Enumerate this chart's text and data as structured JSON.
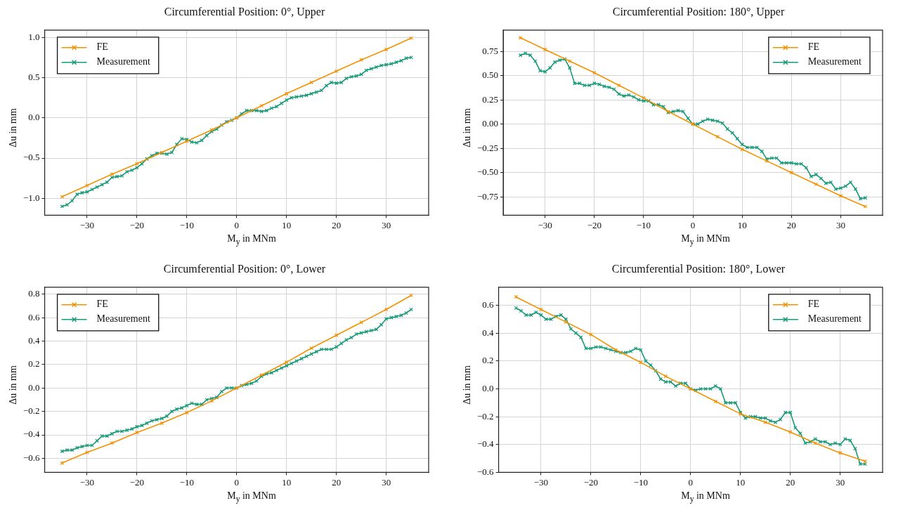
{
  "chart_data": [
    {
      "type": "line",
      "title": "Circumferential Position: 0°, Upper",
      "xlabel": "M$_{y}$ in MNm",
      "ylabel": "Δu in mm",
      "legend": "top left",
      "grid": true,
      "marker": "cross",
      "line_style": "solid",
      "xlim": [
        -38.5,
        38.5
      ],
      "ylim": [
        -1.21,
        1.09
      ],
      "xticks": [
        {
          "value": -30,
          "label": "−30"
        },
        {
          "value": -20,
          "label": "−20"
        },
        {
          "value": -10,
          "label": "−10"
        },
        0,
        10,
        20,
        30
      ],
      "yticks": [
        {
          "value": -1,
          "label": "−1.0"
        },
        {
          "value": -0.5,
          "label": "−0.5"
        },
        {
          "value": 0,
          "label": "0.0"
        },
        0.5,
        {
          "value": 1,
          "label": "1.0"
        }
      ],
      "series": [
        {
          "name": "FE",
          "color": "#f39200",
          "x": [
            -35,
            -30,
            -25,
            -20,
            -15,
            -10,
            -5,
            0,
            5,
            10,
            15,
            20,
            25,
            30,
            35
          ],
          "values": [
            -0.98,
            -0.84,
            -0.7,
            -0.57,
            -0.43,
            -0.29,
            -0.15,
            0,
            0.15,
            0.3,
            0.44,
            0.58,
            0.72,
            0.85,
            0.99
          ]
        },
        {
          "name": "Measurement",
          "color": "#169a78",
          "x": [
            -35,
            -34,
            -33,
            -32,
            -31,
            -30,
            -29,
            -28,
            -27,
            -26,
            -25,
            -24,
            -23,
            -22,
            -21,
            -20,
            -19,
            -18,
            -17,
            -16,
            -15,
            -14,
            -13,
            -12,
            -11,
            -10,
            -9,
            -8,
            -7,
            -6,
            -5,
            -4,
            -3,
            -2,
            -1,
            0,
            1,
            2,
            3,
            4,
            5,
            6,
            7,
            8,
            9,
            10,
            11,
            12,
            13,
            14,
            15,
            16,
            17,
            18,
            19,
            20,
            21,
            22,
            23,
            24,
            25,
            26,
            27,
            28,
            29,
            30,
            31,
            32,
            33,
            34,
            35
          ],
          "values": [
            -1.1,
            -1.08,
            -1.03,
            -0.95,
            -0.93,
            -0.92,
            -0.89,
            -0.86,
            -0.83,
            -0.8,
            -0.74,
            -0.73,
            -0.72,
            -0.67,
            -0.65,
            -0.62,
            -0.57,
            -0.51,
            -0.47,
            -0.44,
            -0.44,
            -0.45,
            -0.43,
            -0.33,
            -0.26,
            -0.27,
            -0.3,
            -0.31,
            -0.28,
            -0.22,
            -0.17,
            -0.14,
            -0.09,
            -0.05,
            -0.03,
            0.0,
            0.05,
            0.09,
            0.09,
            0.09,
            0.08,
            0.09,
            0.12,
            0.14,
            0.18,
            0.22,
            0.25,
            0.26,
            0.27,
            0.28,
            0.3,
            0.32,
            0.34,
            0.4,
            0.44,
            0.43,
            0.44,
            0.49,
            0.51,
            0.52,
            0.54,
            0.59,
            0.61,
            0.63,
            0.65,
            0.66,
            0.67,
            0.69,
            0.71,
            0.74,
            0.75
          ]
        }
      ]
    },
    {
      "type": "line",
      "title": "Circumferential Position: 180°, Upper",
      "xlabel": "M$_{y}$ in MNm",
      "ylabel": "Δu in mm",
      "legend": "top right",
      "grid": true,
      "marker": "cross",
      "line_style": "solid",
      "xlim": [
        -38.5,
        38.5
      ],
      "ylim": [
        -0.94,
        0.97
      ],
      "xticks": [
        {
          "value": -30,
          "label": "−30"
        },
        {
          "value": -20,
          "label": "−20"
        },
        {
          "value": -10,
          "label": "−10"
        },
        0,
        10,
        20,
        30
      ],
      "yticks": [
        {
          "value": -0.75,
          "label": "−0.75"
        },
        {
          "value": -0.5,
          "label": "−0.50"
        },
        {
          "value": -0.25,
          "label": "−0.25"
        },
        {
          "value": 0,
          "label": "0.00"
        },
        0.25,
        {
          "value": 0.5,
          "label": "0.50"
        },
        0.75
      ],
      "series": [
        {
          "name": "FE",
          "color": "#f39200",
          "x": [
            -35,
            -30,
            -25,
            -20,
            -15,
            -10,
            -5,
            0,
            5,
            10,
            15,
            20,
            25,
            30,
            35
          ],
          "values": [
            0.89,
            0.77,
            0.65,
            0.53,
            0.4,
            0.27,
            0.13,
            0,
            -0.13,
            -0.26,
            -0.38,
            -0.5,
            -0.62,
            -0.74,
            -0.85
          ]
        },
        {
          "name": "Measurement",
          "color": "#169a78",
          "x": [
            -35,
            -34,
            -33,
            -32,
            -31,
            -30,
            -29,
            -28,
            -27,
            -26,
            -25,
            -24,
            -23,
            -22,
            -21,
            -20,
            -19,
            -18,
            -17,
            -16,
            -15,
            -14,
            -13,
            -12,
            -11,
            -10,
            -9,
            -8,
            -7,
            -6,
            -5,
            -4,
            -3,
            -2,
            -1,
            0,
            1,
            2,
            3,
            4,
            5,
            6,
            7,
            8,
            9,
            10,
            11,
            12,
            13,
            14,
            15,
            16,
            17,
            18,
            19,
            20,
            21,
            22,
            23,
            24,
            25,
            26,
            27,
            28,
            29,
            30,
            31,
            32,
            33,
            34,
            35
          ],
          "values": [
            0.71,
            0.73,
            0.71,
            0.65,
            0.55,
            0.54,
            0.58,
            0.64,
            0.66,
            0.67,
            0.58,
            0.42,
            0.42,
            0.4,
            0.4,
            0.42,
            0.41,
            0.39,
            0.38,
            0.36,
            0.31,
            0.29,
            0.3,
            0.28,
            0.25,
            0.24,
            0.24,
            0.2,
            0.2,
            0.18,
            0.12,
            0.13,
            0.14,
            0.13,
            0.06,
            0.0,
            0.0,
            0.03,
            0.05,
            0.04,
            0.03,
            0.01,
            -0.05,
            -0.09,
            -0.15,
            -0.21,
            -0.24,
            -0.24,
            -0.24,
            -0.28,
            -0.36,
            -0.35,
            -0.35,
            -0.4,
            -0.4,
            -0.4,
            -0.41,
            -0.41,
            -0.45,
            -0.54,
            -0.52,
            -0.56,
            -0.61,
            -0.6,
            -0.67,
            -0.66,
            -0.64,
            -0.6,
            -0.67,
            -0.77,
            -0.76
          ]
        }
      ]
    },
    {
      "type": "line",
      "title": "Circumferential Position: 0°, Lower",
      "xlabel": "M$_{y}$ in MNm",
      "ylabel": "Δu in mm",
      "legend": "top left",
      "grid": true,
      "marker": "cross",
      "line_style": "solid",
      "xlim": [
        -38.5,
        38.5
      ],
      "ylim": [
        -0.72,
        0.86
      ],
      "xticks": [
        {
          "value": -30,
          "label": "−30"
        },
        {
          "value": -20,
          "label": "−20"
        },
        {
          "value": -10,
          "label": "−10"
        },
        0,
        10,
        20,
        30
      ],
      "yticks": [
        {
          "value": -0.6,
          "label": "−0.6"
        },
        {
          "value": -0.4,
          "label": "−0.4"
        },
        {
          "value": -0.2,
          "label": "−0.2"
        },
        {
          "value": 0,
          "label": "0.0"
        },
        0.2,
        0.4,
        0.6,
        0.8
      ],
      "series": [
        {
          "name": "FE",
          "color": "#f39200",
          "x": [
            -35,
            -30,
            -25,
            -20,
            -15,
            -10,
            -5,
            0,
            5,
            10,
            15,
            20,
            25,
            30,
            35
          ],
          "values": [
            -0.64,
            -0.55,
            -0.47,
            -0.38,
            -0.3,
            -0.21,
            -0.11,
            0,
            0.11,
            0.22,
            0.34,
            0.45,
            0.56,
            0.67,
            0.79
          ]
        },
        {
          "name": "Measurement",
          "color": "#169a78",
          "x": [
            -35,
            -34,
            -33,
            -32,
            -31,
            -30,
            -29,
            -28,
            -27,
            -26,
            -25,
            -24,
            -23,
            -22,
            -21,
            -20,
            -19,
            -18,
            -17,
            -16,
            -15,
            -14,
            -13,
            -12,
            -11,
            -10,
            -9,
            -8,
            -7,
            -6,
            -5,
            -4,
            -3,
            -2,
            -1,
            0,
            1,
            2,
            3,
            4,
            5,
            6,
            7,
            8,
            9,
            10,
            11,
            12,
            13,
            14,
            15,
            16,
            17,
            18,
            19,
            20,
            21,
            22,
            23,
            24,
            25,
            26,
            27,
            28,
            29,
            30,
            31,
            32,
            33,
            34,
            35
          ],
          "values": [
            -0.54,
            -0.53,
            -0.53,
            -0.51,
            -0.5,
            -0.49,
            -0.49,
            -0.45,
            -0.41,
            -0.41,
            -0.39,
            -0.37,
            -0.37,
            -0.36,
            -0.35,
            -0.33,
            -0.32,
            -0.3,
            -0.28,
            -0.27,
            -0.26,
            -0.24,
            -0.2,
            -0.18,
            -0.17,
            -0.15,
            -0.13,
            -0.14,
            -0.14,
            -0.1,
            -0.09,
            -0.08,
            -0.03,
            0.0,
            0.0,
            0.0,
            0.02,
            0.03,
            0.04,
            0.06,
            0.1,
            0.12,
            0.13,
            0.15,
            0.17,
            0.19,
            0.21,
            0.23,
            0.25,
            0.27,
            0.29,
            0.31,
            0.33,
            0.33,
            0.33,
            0.35,
            0.38,
            0.41,
            0.43,
            0.46,
            0.47,
            0.48,
            0.49,
            0.5,
            0.54,
            0.59,
            0.6,
            0.61,
            0.62,
            0.64,
            0.67
          ]
        }
      ]
    },
    {
      "type": "line",
      "title": "Circumferential Position: 180°, Lower",
      "xlabel": "M$_{y}$ in MNm",
      "ylabel": "Δu in mm",
      "legend": "top right",
      "grid": true,
      "marker": "cross",
      "line_style": "solid",
      "xlim": [
        -38.5,
        38.5
      ],
      "ylim": [
        -0.6,
        0.73
      ],
      "xticks": [
        {
          "value": -30,
          "label": "−30"
        },
        {
          "value": -20,
          "label": "−20"
        },
        {
          "value": -10,
          "label": "−10"
        },
        0,
        10,
        20,
        30
      ],
      "yticks": [
        {
          "value": -0.6,
          "label": "−0.6"
        },
        {
          "value": -0.4,
          "label": "−0.4"
        },
        {
          "value": -0.2,
          "label": "−0.2"
        },
        {
          "value": 0,
          "label": "0.0"
        },
        0.2,
        0.4,
        0.6
      ],
      "series": [
        {
          "name": "FE",
          "color": "#f39200",
          "x": [
            -35,
            -30,
            -25,
            -20,
            -15,
            -10,
            -5,
            0,
            5,
            10,
            15,
            20,
            25,
            30,
            35
          ],
          "values": [
            0.66,
            0.57,
            0.48,
            0.39,
            0.28,
            0.19,
            0.09,
            0,
            -0.09,
            -0.18,
            -0.24,
            -0.31,
            -0.39,
            -0.46,
            -0.52
          ]
        },
        {
          "name": "Measurement",
          "color": "#169a78",
          "x": [
            -35,
            -34,
            -33,
            -32,
            -31,
            -30,
            -29,
            -28,
            -27,
            -26,
            -25,
            -24,
            -23,
            -22,
            -21,
            -20,
            -19,
            -18,
            -17,
            -16,
            -15,
            -14,
            -13,
            -12,
            -11,
            -10,
            -9,
            -8,
            -7,
            -6,
            -5,
            -4,
            -3,
            -2,
            -1,
            0,
            1,
            2,
            3,
            4,
            5,
            6,
            7,
            8,
            9,
            10,
            11,
            12,
            13,
            14,
            15,
            16,
            17,
            18,
            19,
            20,
            21,
            22,
            23,
            24,
            25,
            26,
            27,
            28,
            29,
            30,
            31,
            32,
            33,
            34,
            35
          ],
          "values": [
            0.58,
            0.56,
            0.53,
            0.53,
            0.55,
            0.53,
            0.5,
            0.5,
            0.52,
            0.53,
            0.5,
            0.43,
            0.4,
            0.37,
            0.29,
            0.29,
            0.3,
            0.3,
            0.29,
            0.28,
            0.27,
            0.26,
            0.26,
            0.27,
            0.29,
            0.28,
            0.2,
            0.17,
            0.13,
            0.07,
            0.05,
            0.05,
            0.02,
            0.04,
            0.04,
            0.0,
            -0.01,
            0.0,
            0.0,
            0.0,
            0.02,
            0.0,
            -0.1,
            -0.1,
            -0.1,
            -0.17,
            -0.21,
            -0.2,
            -0.2,
            -0.21,
            -0.21,
            -0.23,
            -0.24,
            -0.22,
            -0.17,
            -0.17,
            -0.28,
            -0.32,
            -0.39,
            -0.38,
            -0.36,
            -0.38,
            -0.38,
            -0.4,
            -0.39,
            -0.4,
            -0.36,
            -0.37,
            -0.43,
            -0.54,
            -0.54
          ]
        }
      ]
    }
  ]
}
